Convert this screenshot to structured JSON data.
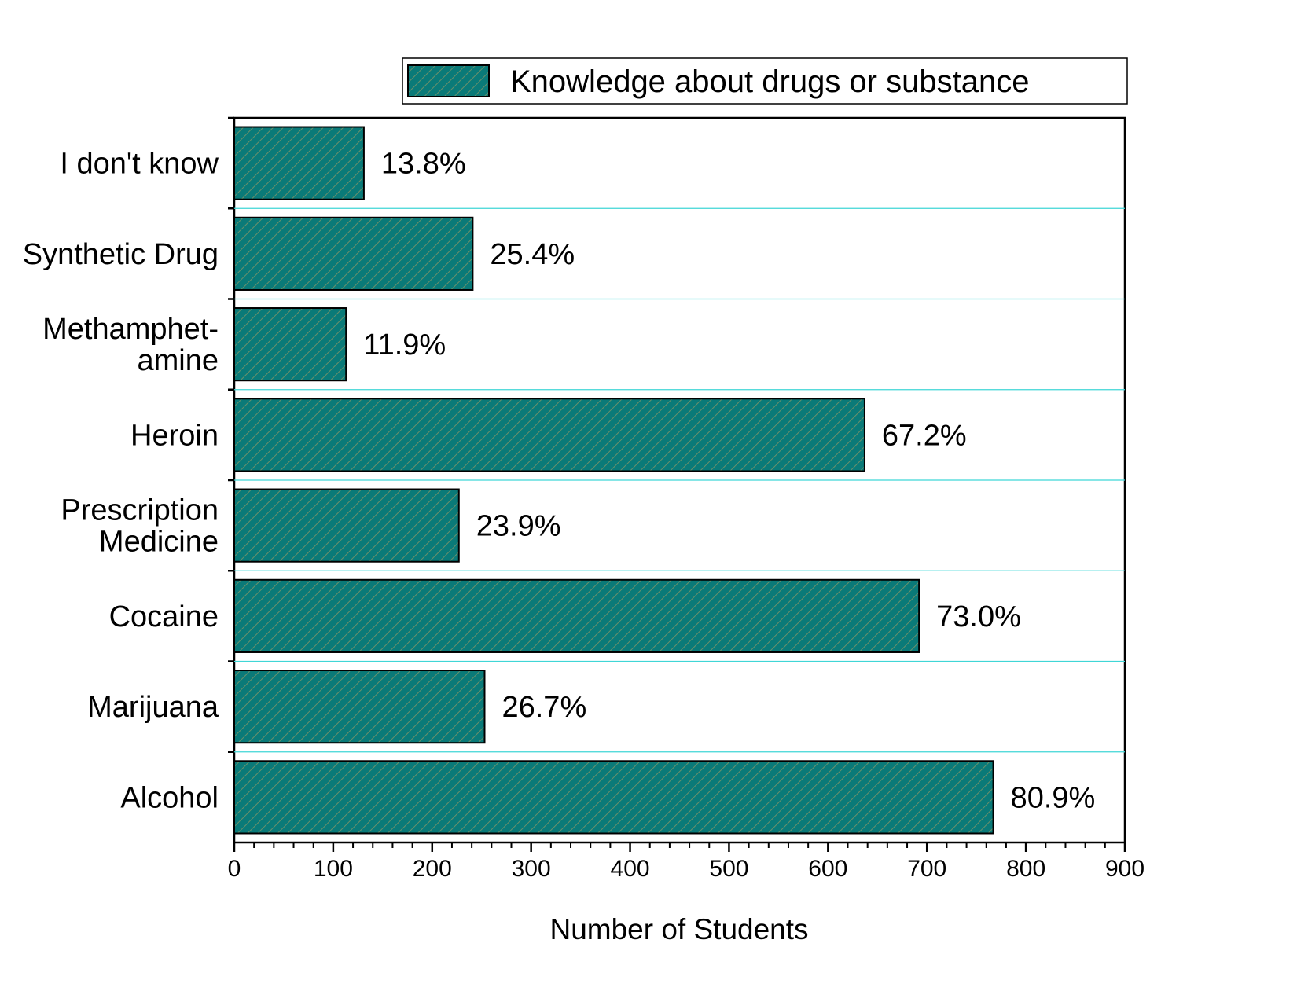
{
  "chart_data": {
    "type": "bar",
    "orientation": "horizontal",
    "categories": [
      [
        "Alcohol"
      ],
      [
        "Marijuana"
      ],
      [
        "Cocaine"
      ],
      [
        "Prescription",
        "Medicine"
      ],
      [
        "Heroin"
      ],
      [
        "Methamphet-",
        "amine"
      ],
      [
        "Synthetic Drug"
      ],
      [
        "I don't know"
      ]
    ],
    "series": [
      {
        "name": "Knowledge about drugs or substance",
        "values": [
          767,
          253,
          692,
          227,
          637,
          113,
          241,
          131
        ],
        "data_labels": [
          "80.9%",
          "26.7%",
          "73.0%",
          "23.9%",
          "67.2%",
          "11.9%",
          "25.4%",
          "13.8%"
        ],
        "color": "#0a7a78",
        "pattern": "diagonal-hatch"
      }
    ],
    "xlabel": "Number of Students",
    "ylabel": "",
    "title": "",
    "xlim": [
      0,
      900
    ],
    "xticks": [
      "0",
      "100",
      "200",
      "300",
      "400",
      "500",
      "600",
      "700",
      "800",
      "900"
    ],
    "grid": "horizontal",
    "grid_color": "#3fd6d6",
    "legend_position": "top"
  }
}
